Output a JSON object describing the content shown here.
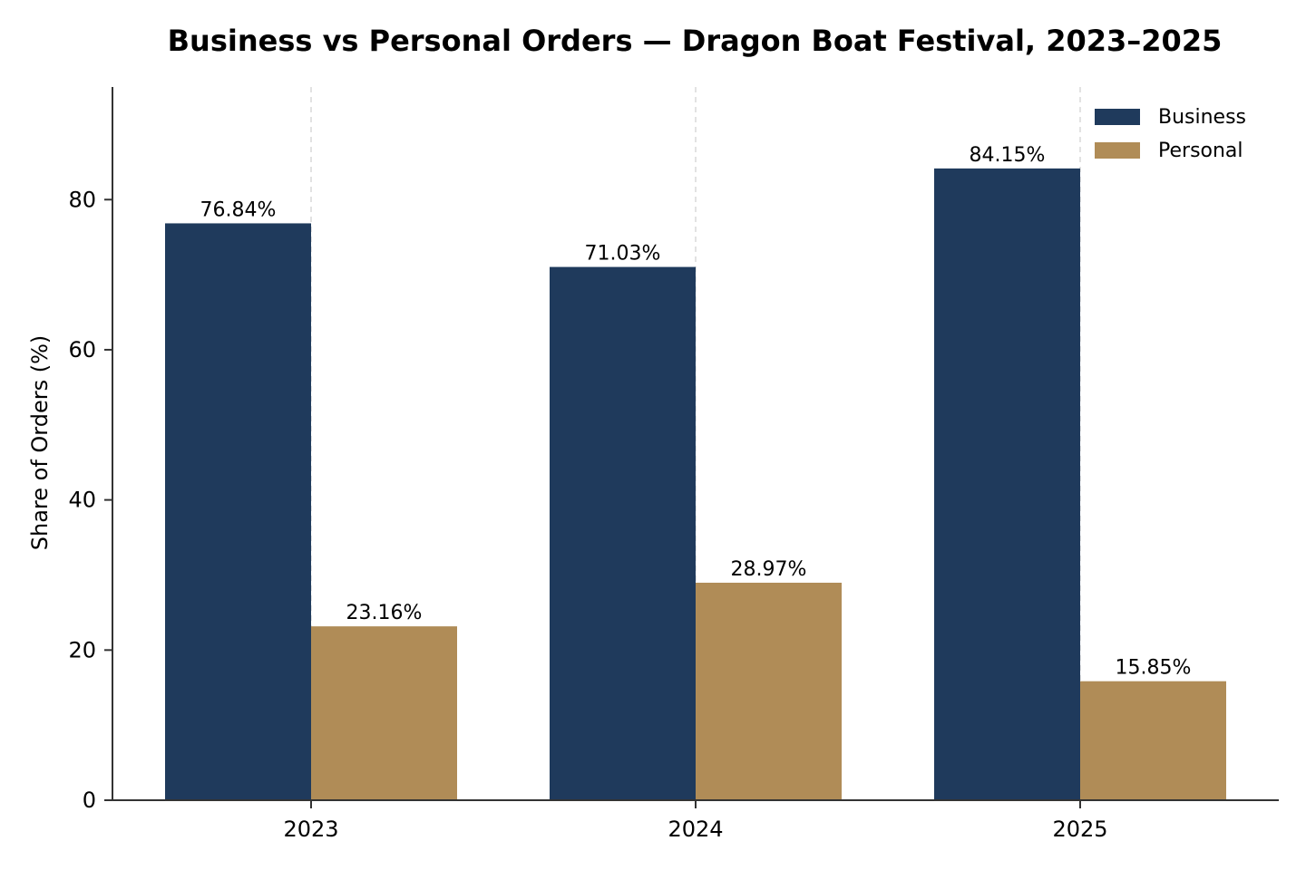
{
  "chart_data": {
    "type": "bar",
    "title": "Business vs Personal Orders — Dragon Boat Festival, 2023–2025",
    "xlabel": "",
    "ylabel": "Share of Orders (%)",
    "categories": [
      "2023",
      "2024",
      "2025"
    ],
    "series": [
      {
        "name": "Business",
        "color": "#1f3a5c",
        "values": [
          76.84,
          71.03,
          84.15
        ],
        "labels": [
          "76.84%",
          "71.03%",
          "84.15%"
        ]
      },
      {
        "name": "Personal",
        "color": "#b08c57",
        "values": [
          23.16,
          28.97,
          15.85
        ],
        "labels": [
          "23.16%",
          "28.97%",
          "15.85%"
        ]
      }
    ],
    "ylim": [
      0,
      95
    ],
    "yticks": [
      0,
      20,
      40,
      60,
      80
    ],
    "ytick_labels": [
      "0",
      "20",
      "40",
      "60",
      "80"
    ],
    "grid": "x-dashed",
    "legend_position": "top-right"
  }
}
